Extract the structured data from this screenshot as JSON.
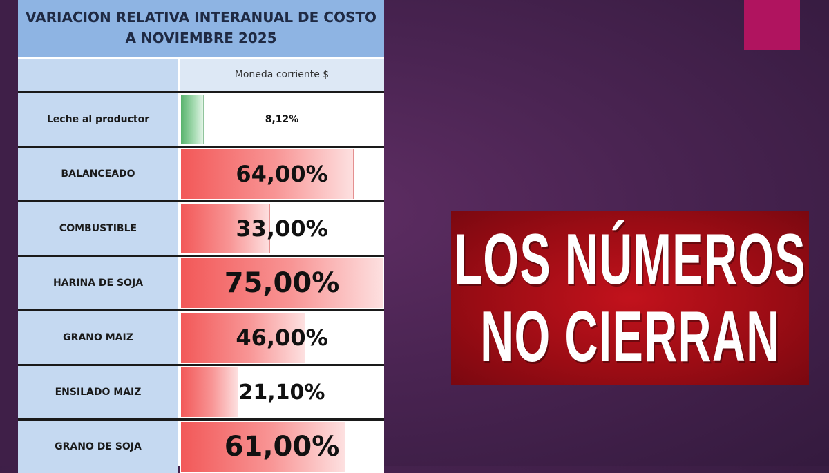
{
  "colors": {
    "title_bg": "#8eb4e3",
    "label_bg": "#c5d9f1",
    "bar_red": "#f25858",
    "bar_green": "#58b36c",
    "headline_bg": "#b0101a",
    "accent_pink": "#b0145f"
  },
  "headline": {
    "line1": "LOS NÚMEROS",
    "line2": "NO CIERRAN"
  },
  "chart_data": {
    "type": "table",
    "title_line1": "VARIACION RELATIVA INTERANUAL DE COSTO",
    "title_line2": "A NOVIEMBRE 2025",
    "column_header": "Moneda corriente $",
    "value_max": 75,
    "rows": [
      {
        "label": "Leche al productor",
        "value": 8.12,
        "display": "8,12%",
        "color": "green",
        "font_size": 14
      },
      {
        "label": "BALANCEADO",
        "value": 64.0,
        "display": "64,00%",
        "color": "red",
        "font_size": 32
      },
      {
        "label": "COMBUSTIBLE",
        "value": 33.0,
        "display": "33,00%",
        "color": "red",
        "font_size": 32
      },
      {
        "label": "HARINA DE SOJA",
        "value": 75.0,
        "display": "75,00%",
        "color": "red",
        "font_size": 40
      },
      {
        "label": "GRANO MAIZ",
        "value": 46.0,
        "display": "46,00%",
        "color": "red",
        "font_size": 32
      },
      {
        "label": "ENSILADO MAIZ",
        "value": 21.1,
        "display": "21,10%",
        "color": "red",
        "font_size": 30
      },
      {
        "label": "GRANO DE SOJA",
        "value": 61.0,
        "display": "61,00%",
        "color": "red",
        "font_size": 40
      }
    ]
  }
}
